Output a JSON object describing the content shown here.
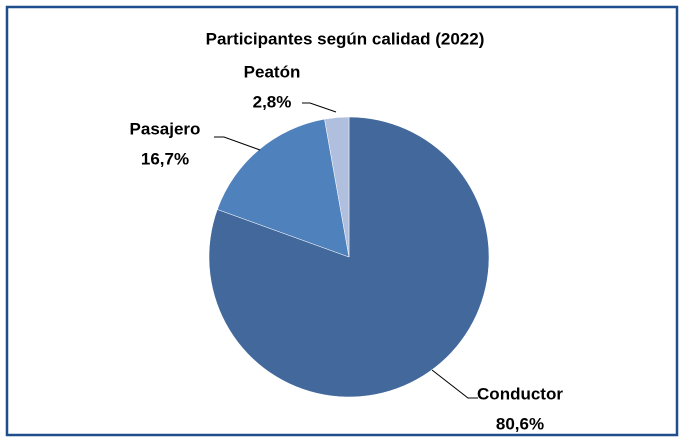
{
  "chart_data": {
    "type": "pie",
    "title": "Participantes según calidad (2022)",
    "categories": [
      "Conductor",
      "Pasajero",
      "Peatón"
    ],
    "values": [
      80.6,
      16.7,
      2.8
    ],
    "value_labels": [
      "80,6%",
      "16,7%",
      "2,8%"
    ],
    "colors": [
      "#43699c",
      "#4f81bd",
      "#b0bfdd"
    ]
  }
}
